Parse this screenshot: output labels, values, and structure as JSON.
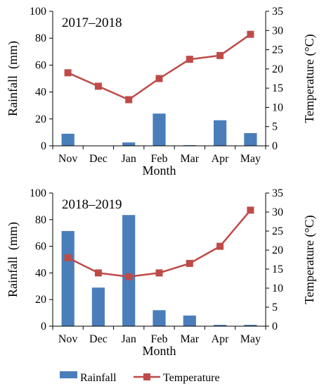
{
  "colors": {
    "rainfall": "#4a7ebb",
    "temperature": "#be4b48",
    "axis": "#000000"
  },
  "legend": {
    "rainfall": "Rainfall",
    "temperature": "Temperature"
  },
  "chart_data": [
    {
      "type": "bar",
      "combo": "bar+line (dual y-axis)",
      "title": "2017–2018",
      "xlabel": "Month",
      "ylabel": "Rainfall  (mm)",
      "y2label": "Temperature (°C)",
      "ylim": [
        0,
        100
      ],
      "y2lim": [
        0,
        35
      ],
      "yticks": [
        "0",
        "20",
        "40",
        "60",
        "80",
        "100"
      ],
      "y2ticks": [
        "0",
        "5",
        "10",
        "15",
        "20",
        "25",
        "30",
        "35"
      ],
      "categories": [
        "Nov",
        "Dec",
        "Jan",
        "Feb",
        "Mar",
        "Apr",
        "May"
      ],
      "series": [
        {
          "name": "Rainfall",
          "type": "bar",
          "axis": "left",
          "values": [
            9,
            0,
            2.5,
            24,
            0.5,
            19,
            9.5
          ]
        },
        {
          "name": "Temperature",
          "type": "line",
          "axis": "right",
          "values": [
            19,
            15.5,
            12,
            17.5,
            22.5,
            23.5,
            29
          ]
        }
      ],
      "grid": false,
      "legend": "bottom"
    },
    {
      "type": "bar",
      "combo": "bar+line (dual y-axis)",
      "title": "2018–2019",
      "xlabel": "Month",
      "ylabel": "Rainfall  (mm)",
      "y2label": "Temperature (°C)",
      "ylim": [
        0,
        100
      ],
      "y2lim": [
        0,
        35
      ],
      "yticks": [
        "0",
        "20",
        "40",
        "60",
        "80",
        "100"
      ],
      "y2ticks": [
        "0",
        "5",
        "10",
        "15",
        "20",
        "25",
        "30",
        "35"
      ],
      "categories": [
        "Nov",
        "Dec",
        "Jan",
        "Feb",
        "Mar",
        "Apr",
        "May"
      ],
      "series": [
        {
          "name": "Rainfall",
          "type": "bar",
          "axis": "left",
          "values": [
            71.5,
            29,
            83.5,
            12,
            8,
            1,
            1
          ]
        },
        {
          "name": "Temperature",
          "type": "line",
          "axis": "right",
          "values": [
            18,
            14,
            13,
            14,
            16.5,
            21,
            30.5
          ]
        }
      ],
      "grid": false,
      "legend": "bottom"
    }
  ]
}
